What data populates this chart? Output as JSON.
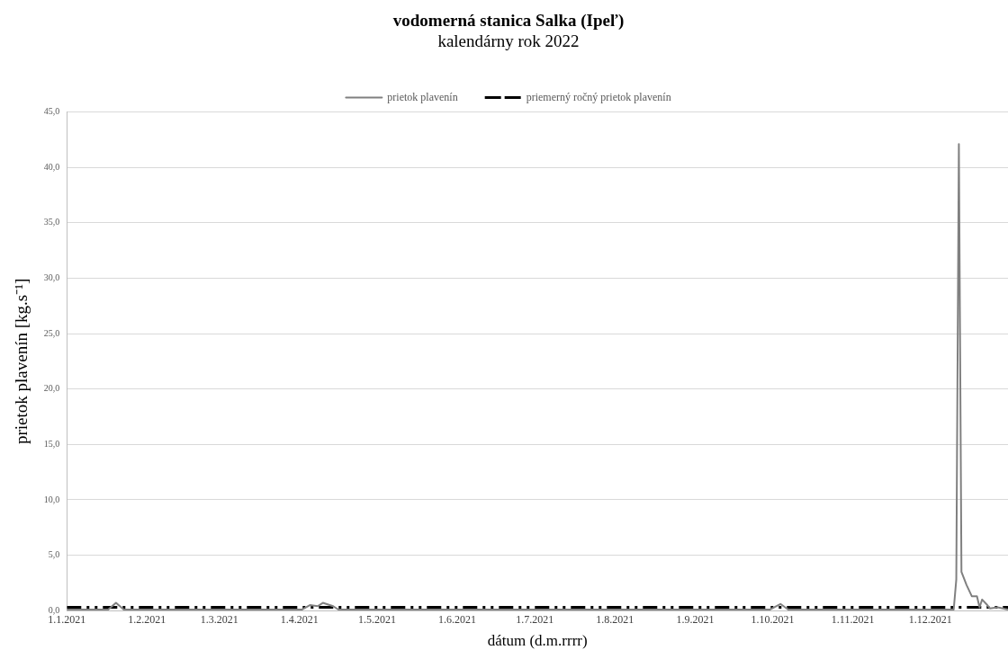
{
  "chart_data": {
    "type": "line",
    "title": "vodomerná stanica Salka (Ipeľ)",
    "subtitle": "kalendárny rok 2022",
    "xlabel": "dátum (d.m.rrrr)",
    "ylabel": "prietok plavenín [kg.s⁻¹]",
    "series": [
      {
        "name": "prietok plavenín",
        "color": "#808080",
        "line_style": "solid",
        "x": [
          "2021-01-01",
          "2021-01-17",
          "2021-01-20",
          "2021-01-23",
          "2021-04-02",
          "2021-04-05",
          "2021-04-08",
          "2021-04-10",
          "2021-04-14",
          "2021-04-16",
          "2021-09-30",
          "2021-10-04",
          "2021-10-07",
          "2021-12-10",
          "2021-12-11",
          "2021-12-12",
          "2021-12-13",
          "2021-12-15",
          "2021-12-17",
          "2021-12-19",
          "2021-12-20",
          "2021-12-21",
          "2021-12-23",
          "2021-12-24",
          "2021-12-27",
          "2021-12-29",
          "2021-12-31"
        ],
        "values": [
          0.1,
          0.1,
          0.7,
          0.1,
          0.1,
          0.5,
          0.4,
          0.7,
          0.4,
          0.1,
          0.1,
          0.6,
          0.1,
          0.1,
          2.8,
          42.1,
          3.5,
          2.3,
          1.3,
          1.3,
          0.3,
          1.0,
          0.5,
          0.2,
          0.3,
          0.2,
          0.1
        ]
      },
      {
        "name": "priemerný ročný prietok plavenín",
        "color": "#000000",
        "line_style": "dashed",
        "x": [
          "2021-01-01",
          "2021-12-31"
        ],
        "values": [
          0.3,
          0.3
        ]
      }
    ],
    "xlim": [
      "2021-01-01",
      "2021-12-31"
    ],
    "xticks": [
      {
        "value": "2021-01-01",
        "label": "1.1.2021"
      },
      {
        "value": "2021-02-01",
        "label": "1.2.2021"
      },
      {
        "value": "2021-03-01",
        "label": "1.3.2021"
      },
      {
        "value": "2021-04-01",
        "label": "1.4.2021"
      },
      {
        "value": "2021-05-01",
        "label": "1.5.2021"
      },
      {
        "value": "2021-06-01",
        "label": "1.6.2021"
      },
      {
        "value": "2021-07-01",
        "label": "1.7.2021"
      },
      {
        "value": "2021-08-01",
        "label": "1.8.2021"
      },
      {
        "value": "2021-09-01",
        "label": "1.9.2021"
      },
      {
        "value": "2021-10-01",
        "label": "1.10.2021"
      },
      {
        "value": "2021-11-01",
        "label": "1.11.2021"
      },
      {
        "value": "2021-12-01",
        "label": "1.12.2021"
      }
    ],
    "ylim": [
      0,
      45
    ],
    "yticks": [
      {
        "value": 0,
        "label": "0,0"
      },
      {
        "value": 5,
        "label": "5,0"
      },
      {
        "value": 10,
        "label": "10,0"
      },
      {
        "value": 15,
        "label": "15,0"
      },
      {
        "value": 20,
        "label": "20,0"
      },
      {
        "value": 25,
        "label": "25,0"
      },
      {
        "value": 30,
        "label": "30,0"
      },
      {
        "value": 35,
        "label": "35,0"
      },
      {
        "value": 40,
        "label": "40,0"
      },
      {
        "value": 45,
        "label": "45,0"
      }
    ],
    "grid": "y",
    "legend": "top",
    "marker": "none"
  }
}
